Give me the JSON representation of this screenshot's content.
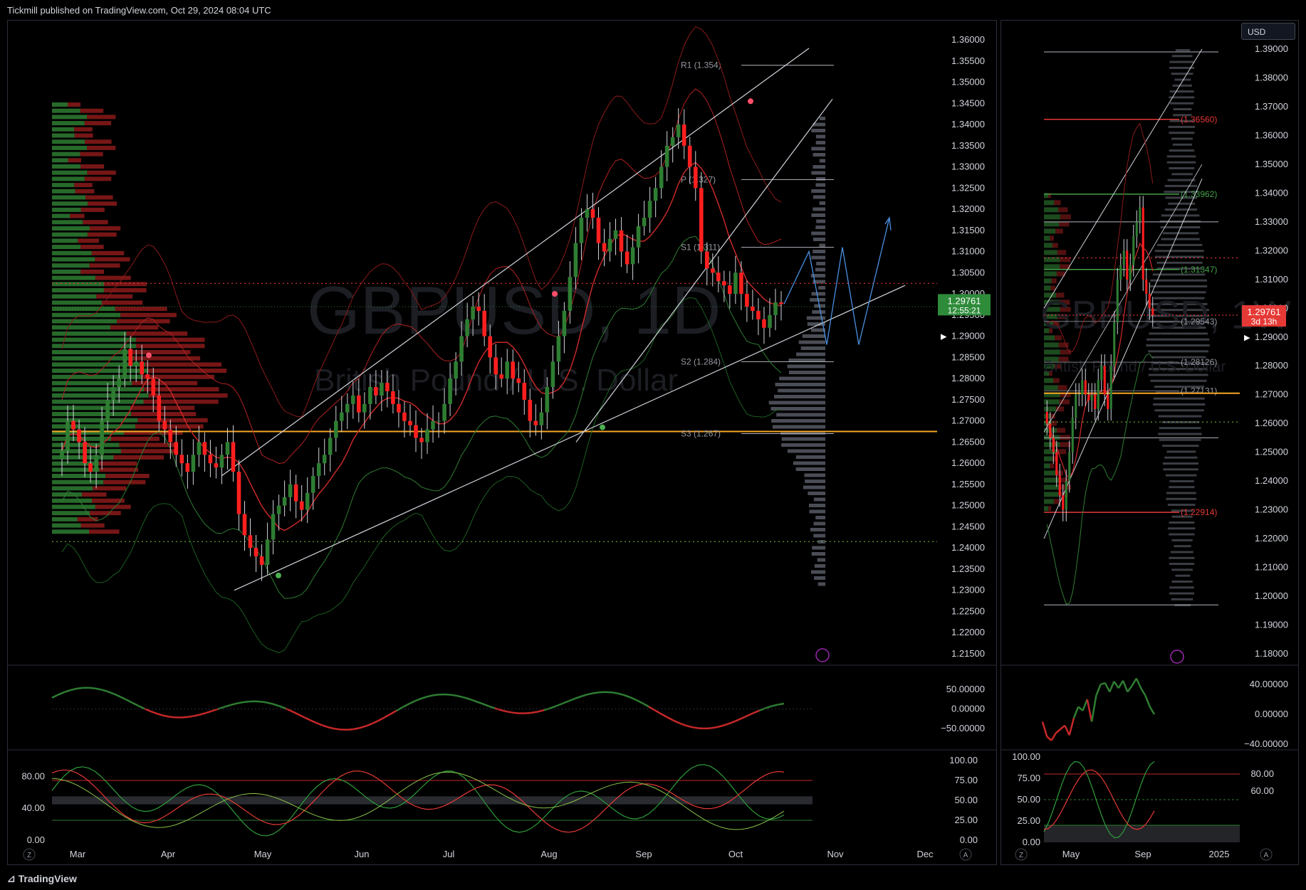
{
  "header": {
    "publish_text": "Tickmill published on TradingView.com, Oct 29, 2024 08:04 UTC"
  },
  "footer": {
    "brand": "TradingView"
  },
  "left_chart": {
    "watermark_symbol": "GBPUSD, 1D",
    "watermark_name": "British Pound / U.S. Dollar",
    "price_label": "1.29761",
    "countdown_label": "12:55:21",
    "price_ticks": [
      "1.36000",
      "1.35500",
      "1.35000",
      "1.34500",
      "1.34000",
      "1.33500",
      "1.33000",
      "1.32500",
      "1.32000",
      "1.31500",
      "1.31000",
      "1.30500",
      "1.30000",
      "1.29500",
      "1.29000",
      "1.28500",
      "1.28000",
      "1.27500",
      "1.27000",
      "1.26500",
      "1.26000",
      "1.25500",
      "1.25000",
      "1.24500",
      "1.24000",
      "1.23500",
      "1.23000",
      "1.22500",
      "1.22000",
      "1.21500"
    ],
    "month_ticks": [
      "Mar",
      "Apr",
      "May",
      "Jun",
      "Jul",
      "Aug",
      "Sep",
      "Oct",
      "Nov",
      "Dec"
    ],
    "pivot_labels": [
      "R1 (1.354)",
      "P (1.327)",
      "S1 (1.311)",
      "S2 (1.284)",
      "S3 (1.267)"
    ],
    "osc_ticks": [
      "50.00000",
      "0.00000",
      "−50.00000"
    ],
    "stoch_left_ticks": [
      "80.00",
      "40.00",
      "0.00"
    ],
    "stoch_right_ticks": [
      "100.00",
      "75.00",
      "50.00",
      "25.00",
      "0.00"
    ],
    "corner_left": "Z",
    "corner_right": "A"
  },
  "right_chart": {
    "currency_button": "USD",
    "watermark_symbol": "GBPUSD, 1W",
    "watermark_name": "British Pound / U.S. Dollar",
    "price_label": "1.29761",
    "countdown_label": "3d 13h",
    "price_ticks": [
      "1.39000",
      "1.38000",
      "1.37000",
      "1.36000",
      "1.35000",
      "1.34000",
      "1.33000",
      "1.32000",
      "1.31000",
      "1.30000",
      "1.29000",
      "1.28000",
      "1.27000",
      "1.26000",
      "1.25000",
      "1.24000",
      "1.23000",
      "1.22000",
      "1.21000",
      "1.20000",
      "1.19000",
      "1.18000"
    ],
    "level_labels": [
      "(1.36560)",
      "(1.33962)",
      "(1.31347)",
      "(1.29543)",
      "(1.28126)",
      "(1.27131)",
      "(1.22914)"
    ],
    "month_ticks": [
      "May",
      "Sep",
      "2025"
    ],
    "osc_ticks": [
      "40.00000",
      "0.00000",
      "−40.00000"
    ],
    "stoch_left_ticks": [
      "100.00",
      "75.00",
      "50.00",
      "25.00",
      "0.00"
    ],
    "stoch_right_ticks": [
      "80.00",
      "60.00"
    ],
    "corner_left": "Z",
    "corner_right": "A"
  },
  "colors": {
    "up": "#26a69a",
    "up_candle": "#2e7d32",
    "down": "#ff1f1f",
    "bg": "#000000",
    "orange": "#f5a623",
    "blue": "#4a90e2"
  },
  "chart_data": [
    {
      "type": "candlestick",
      "title": "GBPUSD, 1D",
      "ylim": [
        1.215,
        1.36
      ],
      "x_labels": [
        "Mar",
        "Apr",
        "May",
        "Jun",
        "Jul",
        "Aug",
        "Sep",
        "Oct",
        "Nov",
        "Dec"
      ],
      "close": [
        1.263,
        1.27,
        1.268,
        1.265,
        1.26,
        1.258,
        1.262,
        1.27,
        1.275,
        1.278,
        1.28,
        1.287,
        1.283,
        1.284,
        1.281,
        1.28,
        1.276,
        1.27,
        1.268,
        1.265,
        1.262,
        1.26,
        1.258,
        1.262,
        1.265,
        1.262,
        1.26,
        1.259,
        1.262,
        1.265,
        1.258,
        1.248,
        1.243,
        1.24,
        1.238,
        1.236,
        1.242,
        1.248,
        1.25,
        1.252,
        1.255,
        1.251,
        1.249,
        1.253,
        1.257,
        1.26,
        1.262,
        1.266,
        1.27,
        1.272,
        1.274,
        1.276,
        1.272,
        1.274,
        1.278,
        1.276,
        1.279,
        1.277,
        1.274,
        1.272,
        1.27,
        1.269,
        1.266,
        1.265,
        1.268,
        1.27,
        1.27,
        1.274,
        1.28,
        1.284,
        1.29,
        1.294,
        1.297,
        1.296,
        1.29,
        1.285,
        1.281,
        1.28,
        1.284,
        1.28,
        1.279,
        1.275,
        1.27,
        1.269,
        1.272,
        1.278,
        1.284,
        1.29,
        1.296,
        1.304,
        1.312,
        1.318,
        1.32,
        1.318,
        1.312,
        1.31,
        1.313,
        1.315,
        1.31,
        1.307,
        1.311,
        1.316,
        1.318,
        1.322,
        1.325,
        1.33,
        1.335,
        1.337,
        1.34,
        1.335,
        1.33,
        1.325,
        1.31,
        1.306,
        1.305,
        1.303,
        1.302,
        1.3,
        1.305,
        1.3,
        1.297,
        1.296,
        1.294,
        1.292,
        1.295,
        1.298,
        1.2976
      ]
    },
    {
      "type": "candlestick",
      "title": "GBPUSD, 1W",
      "ylim": [
        1.18,
        1.39
      ],
      "x_labels": [
        "May",
        "Sep",
        "2025"
      ],
      "close": [
        1.26,
        1.255,
        1.25,
        1.242,
        1.235,
        1.23,
        1.24,
        1.25,
        1.262,
        1.27,
        1.27,
        1.275,
        1.27,
        1.268,
        1.27,
        1.265,
        1.275,
        1.28,
        1.27,
        1.265,
        1.28,
        1.295,
        1.31,
        1.315,
        1.32,
        1.31,
        1.315,
        1.325,
        1.33,
        1.335,
        1.31,
        1.305,
        1.3,
        1.2976
      ]
    }
  ]
}
